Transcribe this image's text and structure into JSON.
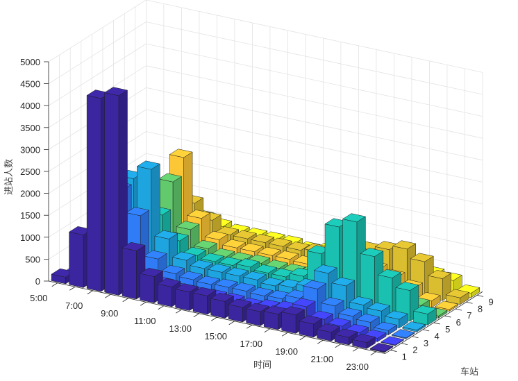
{
  "chart_data": {
    "type": "bar3d",
    "xlabel": "时间",
    "ylabel": "车站",
    "zlabel": "进站人数",
    "hours": [
      5,
      6,
      7,
      8,
      9,
      10,
      11,
      12,
      13,
      14,
      15,
      16,
      17,
      18,
      19,
      20,
      21,
      22,
      23
    ],
    "x_tick_labels": [
      "5:00",
      "7:00",
      "9:00",
      "11:00",
      "13:00",
      "15:00",
      "17:00",
      "19:00",
      "21:00",
      "23:00"
    ],
    "x_tick_hours": [
      5,
      7,
      9,
      11,
      13,
      15,
      17,
      19,
      21,
      23
    ],
    "y_tick_labels": [
      "1",
      "2",
      "3",
      "4",
      "5",
      "6",
      "7",
      "8",
      "9"
    ],
    "z_tick_labels": [
      "0",
      "500",
      "1000",
      "1500",
      "2000",
      "2500",
      "3000",
      "3500",
      "4000",
      "4500",
      "5000"
    ],
    "zlim": [
      0,
      5000
    ],
    "grid": true,
    "colormap": "parula",
    "series": [
      {
        "name": "1",
        "color": "#3b26a0",
        "values": [
          150,
          1200,
          4400,
          4550,
          1100,
          600,
          450,
          420,
          420,
          380,
          330,
          320,
          350,
          420,
          300,
          200,
          170,
          140,
          20
        ]
      },
      {
        "name": "2",
        "color": "#4043f0",
        "values": [
          20,
          200,
          600,
          500,
          350,
          250,
          200,
          200,
          220,
          220,
          200,
          250,
          300,
          450,
          250,
          180,
          120,
          80,
          15
        ]
      },
      {
        "name": "3",
        "color": "#2f7cf6",
        "values": [
          30,
          400,
          2000,
          1500,
          600,
          350,
          300,
          280,
          300,
          300,
          280,
          300,
          400,
          700,
          400,
          250,
          200,
          100,
          20
        ]
      },
      {
        "name": "4",
        "color": "#1ea5df",
        "values": [
          40,
          500,
          2100,
          2400,
          900,
          500,
          400,
          400,
          400,
          400,
          350,
          400,
          500,
          900,
          700,
          350,
          300,
          200,
          40
        ]
      },
      {
        "name": "5",
        "color": "#1ac1b0",
        "values": [
          50,
          400,
          1300,
          1200,
          700,
          450,
          400,
          400,
          450,
          400,
          400,
          500,
          1100,
          1800,
          2000,
          1300,
          900,
          700,
          250
        ]
      },
      {
        "name": "6",
        "color": "#62ca6c",
        "values": [
          40,
          300,
          900,
          1800,
          800,
          450,
          350,
          350,
          380,
          350,
          350,
          400,
          500,
          1300,
          1000,
          600,
          400,
          200,
          50
        ]
      },
      {
        "name": "7",
        "color": "#fcc736",
        "values": [
          30,
          350,
          1000,
          2200,
          900,
          500,
          400,
          400,
          400,
          400,
          380,
          400,
          450,
          700,
          600,
          500,
          350,
          150,
          40
        ]
      },
      {
        "name": "8",
        "color": "#dbbd30",
        "values": [
          30,
          300,
          700,
          1000,
          700,
          450,
          450,
          450,
          450,
          450,
          500,
          500,
          600,
          800,
          900,
          1000,
          800,
          500,
          150
        ]
      },
      {
        "name": "9",
        "color": "#f7f520",
        "values": [
          20,
          200,
          400,
          500,
          400,
          350,
          350,
          350,
          350,
          300,
          350,
          400,
          450,
          500,
          550,
          450,
          350,
          300,
          100
        ]
      }
    ]
  }
}
